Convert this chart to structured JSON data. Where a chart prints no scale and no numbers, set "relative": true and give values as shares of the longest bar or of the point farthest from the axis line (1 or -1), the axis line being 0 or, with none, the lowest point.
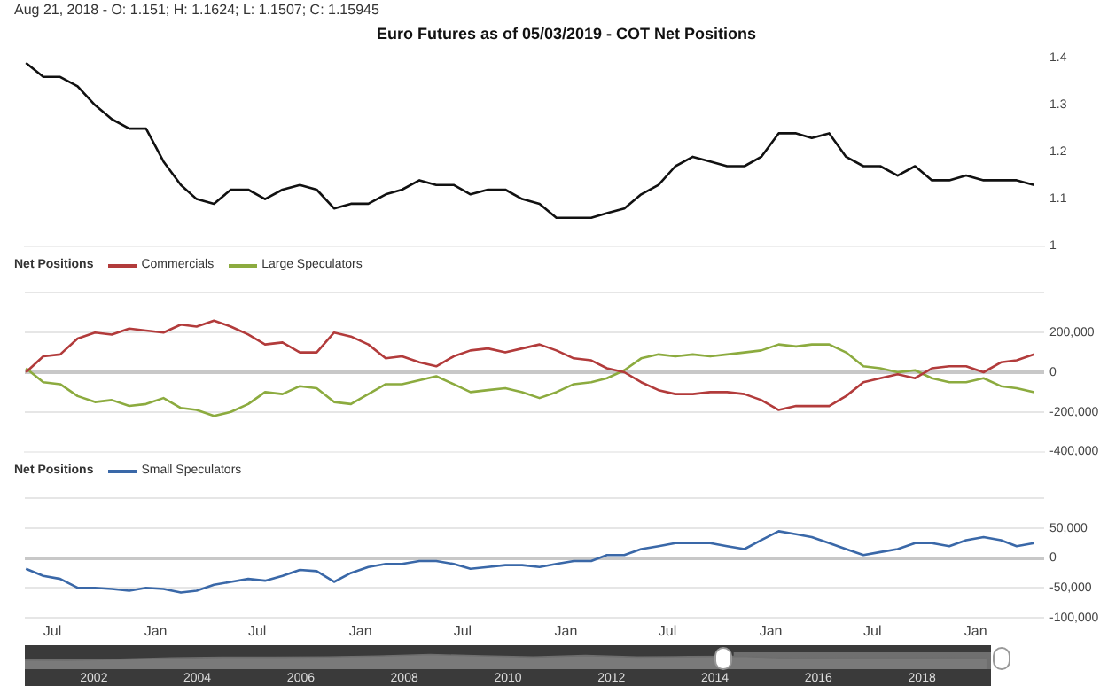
{
  "chart_data": [
    {
      "type": "line",
      "title": "Euro Futures as of 05/03/2019 - COT Net Positions",
      "annotations": [
        "Aug 21, 2018 - O: 1.151; H: 1.1624; L: 1.1507; C: 1.15945"
      ],
      "x": [
        "2014-05-15",
        "2014-06-15",
        "2014-07-15",
        "2014-08-15",
        "2014-09-15",
        "2014-10-15",
        "2014-11-15",
        "2014-12-15",
        "2015-01-15",
        "2015-02-15",
        "2015-03-15",
        "2015-04-15",
        "2015-05-15",
        "2015-06-15",
        "2015-07-15",
        "2015-08-15",
        "2015-09-15",
        "2015-10-15",
        "2015-11-15",
        "2015-12-15",
        "2016-01-15",
        "2016-02-15",
        "2016-03-15",
        "2016-04-15",
        "2016-05-15",
        "2016-06-15",
        "2016-07-15",
        "2016-08-15",
        "2016-09-15",
        "2016-10-15",
        "2016-11-15",
        "2016-12-15",
        "2017-01-15",
        "2017-02-15",
        "2017-03-15",
        "2017-04-15",
        "2017-05-15",
        "2017-06-15",
        "2017-07-15",
        "2017-08-15",
        "2017-09-15",
        "2017-10-15",
        "2017-11-15",
        "2017-12-15",
        "2018-01-15",
        "2018-02-15",
        "2018-03-15",
        "2018-04-15",
        "2018-05-15",
        "2018-06-15",
        "2018-07-15",
        "2018-08-15",
        "2018-09-15",
        "2018-10-15",
        "2018-11-15",
        "2018-12-15",
        "2019-01-15",
        "2019-02-15",
        "2019-03-15",
        "2019-04-15"
      ],
      "series": [
        {
          "color": "#111111",
          "values": [
            1.39,
            1.36,
            1.36,
            1.34,
            1.3,
            1.27,
            1.25,
            1.25,
            1.18,
            1.13,
            1.1,
            1.09,
            1.12,
            1.12,
            1.1,
            1.12,
            1.13,
            1.12,
            1.08,
            1.09,
            1.09,
            1.11,
            1.12,
            1.14,
            1.13,
            1.13,
            1.11,
            1.12,
            1.12,
            1.1,
            1.09,
            1.06,
            1.06,
            1.06,
            1.07,
            1.08,
            1.11,
            1.13,
            1.17,
            1.19,
            1.18,
            1.17,
            1.17,
            1.19,
            1.24,
            1.24,
            1.23,
            1.24,
            1.19,
            1.17,
            1.17,
            1.15,
            1.17,
            1.14,
            1.14,
            1.15,
            1.14,
            1.14,
            1.14,
            1.13
          ]
        }
      ],
      "xlim": [
        "2014-05-13",
        "2019-05-03"
      ],
      "ylim": [
        1.0,
        1.4
      ],
      "yticks": [
        1.0,
        1.1,
        1.2,
        1.3,
        1.4
      ],
      "tick_labels": "y"
    },
    {
      "type": "line",
      "legend_title": "Net Positions",
      "legend": "top left",
      "x": [
        "2014-05-15",
        "2014-06-15",
        "2014-07-15",
        "2014-08-15",
        "2014-09-15",
        "2014-10-15",
        "2014-11-15",
        "2014-12-15",
        "2015-01-15",
        "2015-02-15",
        "2015-03-15",
        "2015-04-15",
        "2015-05-15",
        "2015-06-15",
        "2015-07-15",
        "2015-08-15",
        "2015-09-15",
        "2015-10-15",
        "2015-11-15",
        "2015-12-15",
        "2016-01-15",
        "2016-02-15",
        "2016-03-15",
        "2016-04-15",
        "2016-05-15",
        "2016-06-15",
        "2016-07-15",
        "2016-08-15",
        "2016-09-15",
        "2016-10-15",
        "2016-11-15",
        "2016-12-15",
        "2017-01-15",
        "2017-02-15",
        "2017-03-15",
        "2017-04-15",
        "2017-05-15",
        "2017-06-15",
        "2017-07-15",
        "2017-08-15",
        "2017-09-15",
        "2017-10-15",
        "2017-11-15",
        "2017-12-15",
        "2018-01-15",
        "2018-02-15",
        "2018-03-15",
        "2018-04-15",
        "2018-05-15",
        "2018-06-15",
        "2018-07-15",
        "2018-08-15",
        "2018-09-15",
        "2018-10-15",
        "2018-11-15",
        "2018-12-15",
        "2019-01-15",
        "2019-02-15",
        "2019-03-15",
        "2019-04-15"
      ],
      "series": [
        {
          "name": "Commercials",
          "color": "#b23b3b",
          "values": [
            0,
            80000,
            90000,
            170000,
            200000,
            190000,
            220000,
            210000,
            200000,
            240000,
            230000,
            260000,
            230000,
            190000,
            140000,
            150000,
            100000,
            100000,
            200000,
            180000,
            140000,
            70000,
            80000,
            50000,
            30000,
            80000,
            110000,
            120000,
            100000,
            120000,
            140000,
            110000,
            70000,
            60000,
            20000,
            0,
            -50000,
            -90000,
            -110000,
            -110000,
            -100000,
            -100000,
            -110000,
            -140000,
            -190000,
            -170000,
            -170000,
            -170000,
            -120000,
            -50000,
            -30000,
            -10000,
            -30000,
            20000,
            30000,
            30000,
            0,
            50000,
            60000,
            90000
          ]
        },
        {
          "name": "Large Speculators",
          "color": "#8cab3f",
          "values": [
            20000,
            -50000,
            -60000,
            -120000,
            -150000,
            -140000,
            -170000,
            -160000,
            -130000,
            -180000,
            -190000,
            -220000,
            -200000,
            -160000,
            -100000,
            -110000,
            -70000,
            -80000,
            -150000,
            -160000,
            -110000,
            -60000,
            -60000,
            -40000,
            -20000,
            -60000,
            -100000,
            -90000,
            -80000,
            -100000,
            -130000,
            -100000,
            -60000,
            -50000,
            -30000,
            10000,
            70000,
            90000,
            80000,
            90000,
            80000,
            90000,
            100000,
            110000,
            140000,
            130000,
            140000,
            140000,
            100000,
            30000,
            20000,
            0,
            10000,
            -30000,
            -50000,
            -50000,
            -30000,
            -70000,
            -80000,
            -100000
          ]
        }
      ],
      "xlim": [
        "2014-05-13",
        "2019-05-03"
      ],
      "ylim": [
        -400000,
        400000
      ],
      "yticks": [
        {
          "value": -400000,
          "label": "-400,000"
        },
        {
          "value": -200000,
          "label": "-200,000"
        },
        0,
        {
          "value": 200000,
          "label": "200,000"
        },
        {
          "value": 400000,
          "label": null
        }
      ],
      "grid": "y",
      "tick_labels": "y"
    },
    {
      "type": "line",
      "legend_title": "Net Positions",
      "legend": "top left",
      "x": [
        "2014-05-15",
        "2014-06-15",
        "2014-07-15",
        "2014-08-15",
        "2014-09-15",
        "2014-10-15",
        "2014-11-15",
        "2014-12-15",
        "2015-01-15",
        "2015-02-15",
        "2015-03-15",
        "2015-04-15",
        "2015-05-15",
        "2015-06-15",
        "2015-07-15",
        "2015-08-15",
        "2015-09-15",
        "2015-10-15",
        "2015-11-15",
        "2015-12-15",
        "2016-01-15",
        "2016-02-15",
        "2016-03-15",
        "2016-04-15",
        "2016-05-15",
        "2016-06-15",
        "2016-07-15",
        "2016-08-15",
        "2016-09-15",
        "2016-10-15",
        "2016-11-15",
        "2016-12-15",
        "2017-01-15",
        "2017-02-15",
        "2017-03-15",
        "2017-04-15",
        "2017-05-15",
        "2017-06-15",
        "2017-07-15",
        "2017-08-15",
        "2017-09-15",
        "2017-10-15",
        "2017-11-15",
        "2017-12-15",
        "2018-01-15",
        "2018-02-15",
        "2018-03-15",
        "2018-04-15",
        "2018-05-15",
        "2018-06-15",
        "2018-07-15",
        "2018-08-15",
        "2018-09-15",
        "2018-10-15",
        "2018-11-15",
        "2018-12-15",
        "2019-01-15",
        "2019-02-15",
        "2019-03-15",
        "2019-04-15"
      ],
      "series": [
        {
          "name": "Small Speculators",
          "color": "#3a68a8",
          "values": [
            -18000,
            -30000,
            -35000,
            -50000,
            -50000,
            -52000,
            -55000,
            -50000,
            -52000,
            -58000,
            -55000,
            -45000,
            -40000,
            -35000,
            -38000,
            -30000,
            -20000,
            -22000,
            -40000,
            -25000,
            -15000,
            -10000,
            -10000,
            -5000,
            -5000,
            -10000,
            -18000,
            -15000,
            -12000,
            -12000,
            -15000,
            -10000,
            -5000,
            -5000,
            5000,
            5000,
            15000,
            20000,
            25000,
            25000,
            25000,
            20000,
            15000,
            30000,
            45000,
            40000,
            35000,
            25000,
            15000,
            5000,
            10000,
            15000,
            25000,
            25000,
            20000,
            30000,
            35000,
            30000,
            20000,
            25000
          ]
        }
      ],
      "xlim": [
        "2014-05-13",
        "2019-05-03"
      ],
      "xticks": [
        {
          "value": "2014-07-01",
          "label": "Jul"
        },
        {
          "value": "2015-01-01",
          "label": "Jan"
        },
        {
          "value": "2015-07-01",
          "label": "Jul"
        },
        {
          "value": "2016-01-01",
          "label": "Jan"
        },
        {
          "value": "2016-07-01",
          "label": "Jul"
        },
        {
          "value": "2017-01-01",
          "label": "Jan"
        },
        {
          "value": "2017-07-01",
          "label": "Jul"
        },
        {
          "value": "2018-01-01",
          "label": "Jan"
        },
        {
          "value": "2018-07-01",
          "label": "Jul"
        },
        {
          "value": "2019-01-01",
          "label": "Jan"
        }
      ],
      "ylim": [
        -100000,
        100000
      ],
      "yticks": [
        {
          "value": -100000,
          "label": "-100,000"
        },
        {
          "value": -50000,
          "label": "-50,000"
        },
        0,
        {
          "value": 50000,
          "label": "50,000"
        },
        {
          "value": 100000,
          "label": null
        }
      ],
      "grid": "y"
    },
    {
      "type": "area",
      "relative": true,
      "x": [
        "2000-09",
        "2001-07",
        "2002-07",
        "2003-07",
        "2004-07",
        "2005-07",
        "2006-07",
        "2007-07",
        "2008-07",
        "2009-07",
        "2010-07",
        "2011-07",
        "2012-07",
        "2013-07",
        "2014-07",
        "2015-07",
        "2016-07",
        "2017-07",
        "2018-07",
        "2019-04"
      ],
      "series": [
        {
          "color": "#6e6e6e",
          "values": [
            0.01,
            0,
            0.17,
            0.39,
            0.51,
            0.51,
            0.58,
            0.72,
            1,
            0.76,
            0.55,
            0.82,
            0.55,
            0.63,
            0.7,
            0.34,
            0.35,
            0.39,
            0.44,
            0.37
          ]
        }
      ],
      "xlim": [
        "2000-09",
        "2019-05-03"
      ],
      "xticks": [
        "2002",
        "2004",
        "2006",
        "2008",
        "2010",
        "2012",
        "2014",
        "2016",
        "2018"
      ],
      "bands": [
        {
          "axis": "x",
          "from": "2014-05-13",
          "to": "2019-05-03",
          "color": "#9a9a9a"
        }
      ],
      "tick_labels": "x"
    }
  ]
}
